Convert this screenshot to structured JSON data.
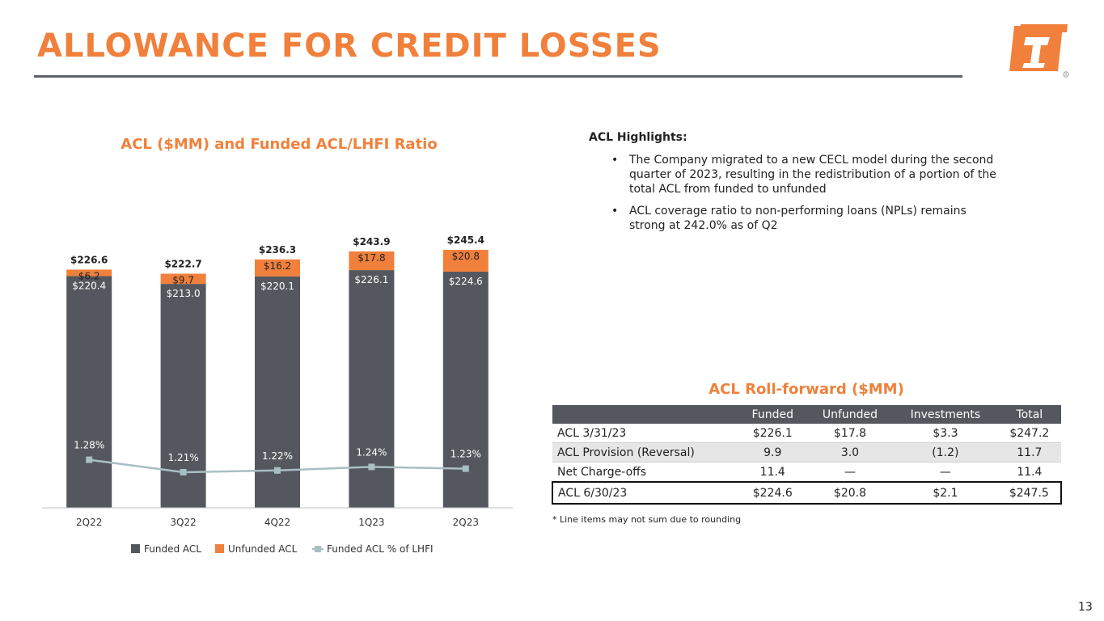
{
  "header": {
    "title": "ALLOWANCE FOR CREDIT LOSSES"
  },
  "colors": {
    "accent": "#f0803c",
    "funded": "#54575d",
    "unfunded": "#f0803c",
    "ratio_line": "#a8bfc4"
  },
  "chart_data": {
    "type": "bar",
    "stacked": true,
    "title": "ACL ($MM) and Funded ACL/LHFI Ratio",
    "categories": [
      "2Q22",
      "3Q22",
      "4Q22",
      "1Q23",
      "2Q23"
    ],
    "series": [
      {
        "name": "Funded ACL",
        "type": "bar",
        "values": [
          220.4,
          213.0,
          220.1,
          226.1,
          224.6
        ],
        "labels": [
          "$220.4",
          "$213.0",
          "$220.1",
          "$226.1",
          "$224.6"
        ]
      },
      {
        "name": "Unfunded ACL",
        "type": "bar",
        "values": [
          6.2,
          9.7,
          16.2,
          17.8,
          20.8
        ],
        "labels": [
          "$6.2",
          "$9.7",
          "$16.2",
          "$17.8",
          "$20.8"
        ]
      },
      {
        "name": "Funded ACL % of LHFI",
        "type": "line",
        "axis": "secondary",
        "values": [
          1.28,
          1.21,
          1.22,
          1.24,
          1.23
        ],
        "labels": [
          "1.28%",
          "1.21%",
          "1.22%",
          "1.24%",
          "1.23%"
        ]
      }
    ],
    "totals": [
      226.6,
      222.7,
      236.3,
      243.9,
      245.4
    ],
    "total_labels": [
      "$226.6",
      "$222.7",
      "$236.3",
      "$243.9",
      "$245.4"
    ],
    "legend": "bottom",
    "grid": false
  },
  "highlights": {
    "heading": "ACL Highlights:",
    "bullet_glyph": "•",
    "items": [
      "The Company migrated to a new CECL model during the second quarter of 2023, resulting in the redistribution of a portion of the total ACL from funded to unfunded",
      "ACL coverage ratio to non-performing loans (NPLs) remains strong at 242.0% as of Q2"
    ]
  },
  "rollforward": {
    "title": "ACL Roll-forward ($MM)",
    "columns": [
      "",
      "Funded",
      "Unfunded",
      "Investments",
      "Total"
    ],
    "rows": [
      [
        "ACL  3/31/23",
        "$226.1",
        "$17.8",
        "$3.3",
        "$247.2"
      ],
      [
        "ACL Provision (Reversal)",
        "9.9",
        "3.0",
        "(1.2)",
        "11.7"
      ],
      [
        "Net Charge-offs",
        "11.4",
        "—",
        "—",
        "11.4"
      ],
      [
        "ACL  6/30/23",
        "$224.6",
        "$20.8",
        "$2.1",
        "$247.5"
      ]
    ]
  },
  "footnote": "* Line items may not sum due to rounding",
  "page_number": "13"
}
